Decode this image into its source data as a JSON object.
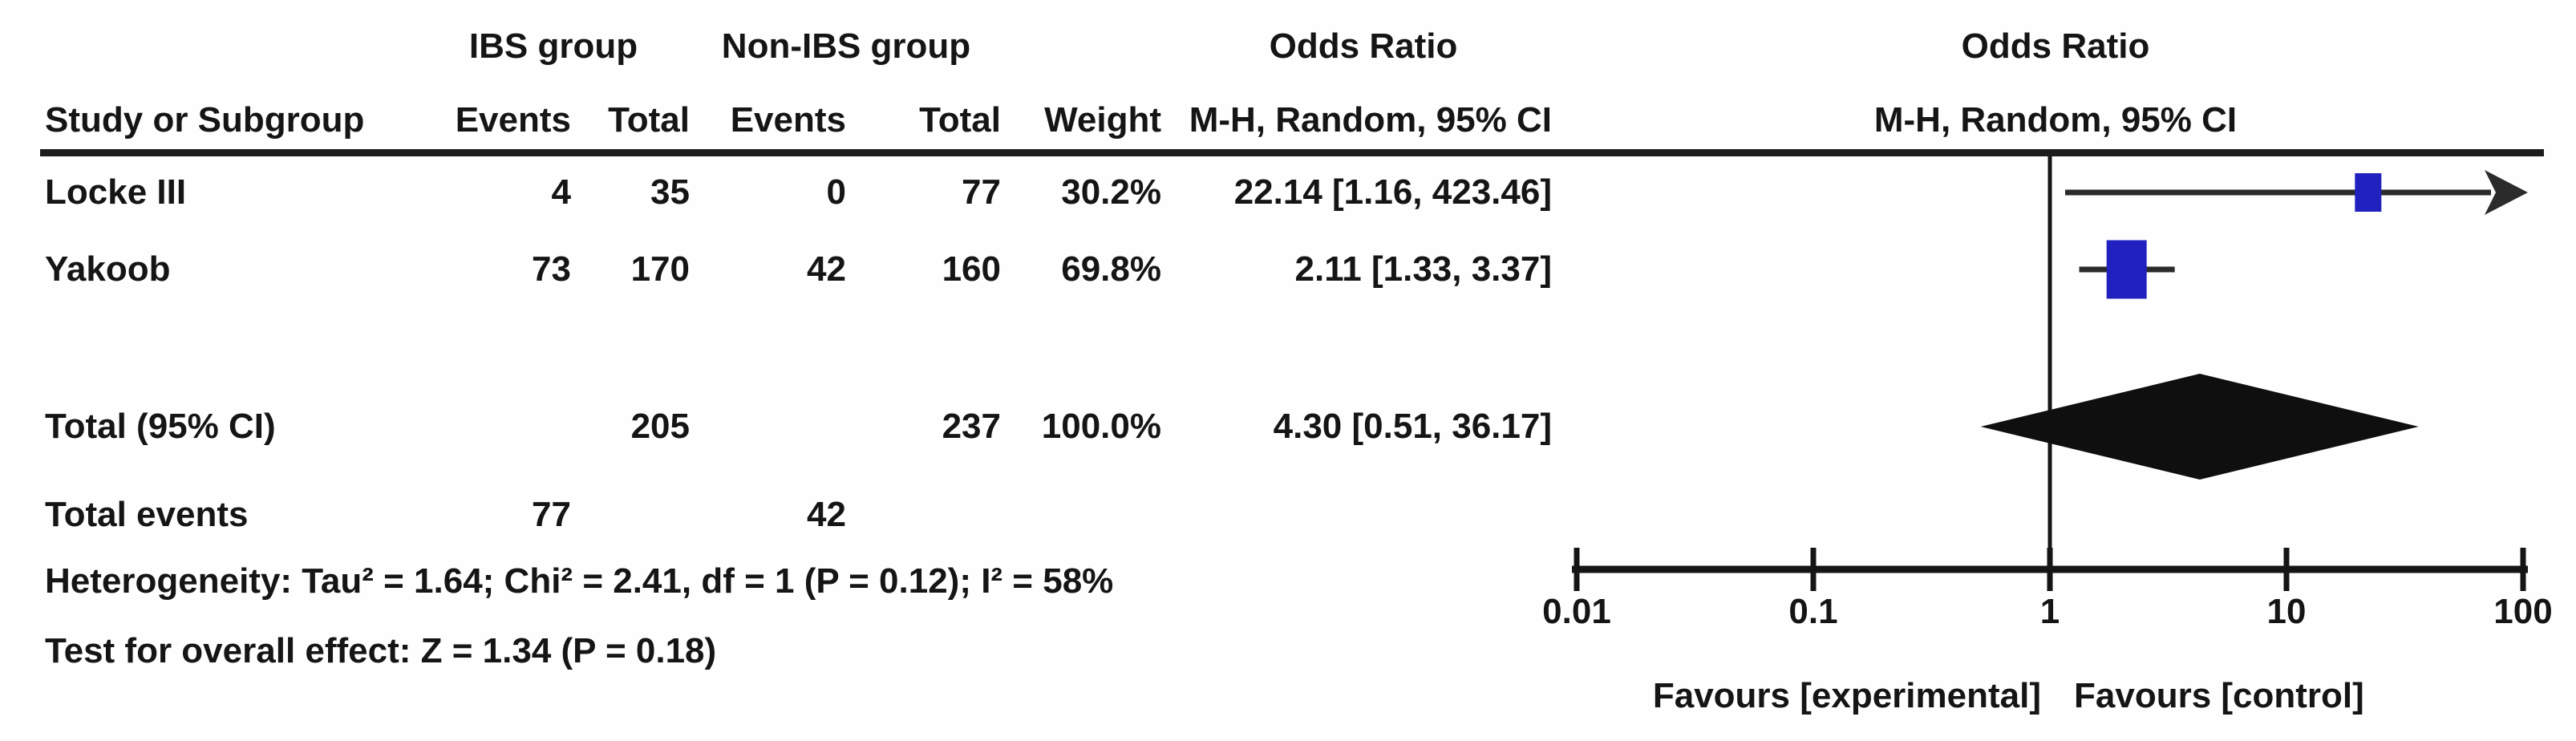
{
  "table": {
    "group1_header": "IBS group",
    "group2_header": "Non-IBS group",
    "or_header_line1": "Odds Ratio",
    "or_header_line2": "M-H, Random, 95% CI",
    "col_study": "Study or Subgroup",
    "col_events": "Events",
    "col_total": "Total",
    "col_weight": "Weight",
    "rows": [
      {
        "study": "Locke III",
        "events1": "4",
        "total1": "35",
        "events2": "0",
        "total2": "77",
        "weight": "30.2%",
        "or_ci": "22.14 [1.16, 423.46]"
      },
      {
        "study": "Yakoob",
        "events1": "73",
        "total1": "170",
        "events2": "42",
        "total2": "160",
        "weight": "69.8%",
        "or_ci": "2.11 [1.33, 3.37]"
      }
    ],
    "total_row": {
      "label": "Total (95% CI)",
      "total1": "205",
      "total2": "237",
      "weight": "100.0%",
      "or_ci": "4.30 [0.51, 36.17]"
    },
    "total_events_row": {
      "label": "Total events",
      "events1": "77",
      "events2": "42"
    },
    "heterogeneity": "Heterogeneity: Tau² = 1.64; Chi² = 2.41, df = 1 (P = 0.12); I² = 58%",
    "overall_effect": "Test for overall effect: Z = 1.34 (P = 0.18)"
  },
  "plot": {
    "header_line1": "Odds Ratio",
    "header_line2": "M-H, Random, 95% CI",
    "favours_left": "Favours [experimental]",
    "favours_right": "Favours [control]",
    "square_color": "#2121c0",
    "line_color": "#2b2b2b",
    "diamond_color": "#0f0f0f",
    "axis_color": "#151515"
  },
  "chart_data": {
    "type": "scatter",
    "subtype": "forest-plot-meta-analysis",
    "effect_measure": "Odds Ratio",
    "method": "M-H, Random, 95% CI",
    "x_scale": "log",
    "x_ticks": [
      0.01,
      0.1,
      1,
      10,
      100
    ],
    "xlim": [
      0.01,
      100
    ],
    "xlabel_left": "Favours [experimental]",
    "xlabel_right": "Favours [control]",
    "studies": [
      {
        "name": "Locke III",
        "events_ibs": 4,
        "total_ibs": 35,
        "events_non_ibs": 0,
        "total_non_ibs": 77,
        "weight_pct": 30.2,
        "or": 22.14,
        "ci_low": 1.16,
        "ci_high": 423.46,
        "ci_exceeds_axis": true
      },
      {
        "name": "Yakoob",
        "events_ibs": 73,
        "total_ibs": 170,
        "events_non_ibs": 42,
        "total_non_ibs": 160,
        "weight_pct": 69.8,
        "or": 2.11,
        "ci_low": 1.33,
        "ci_high": 3.37,
        "ci_exceeds_axis": false
      }
    ],
    "total": {
      "label": "Total (95% CI)",
      "total_ibs": 205,
      "total_non_ibs": 237,
      "weight_pct": 100.0,
      "or": 4.3,
      "ci_low": 0.51,
      "ci_high": 36.17,
      "total_events_ibs": 77,
      "total_events_non_ibs": 42
    },
    "heterogeneity": {
      "tau2": 1.64,
      "chi2": 2.41,
      "df": 1,
      "p": 0.12,
      "i2_pct": 58
    },
    "overall_effect": {
      "z": 1.34,
      "p": 0.18
    }
  }
}
